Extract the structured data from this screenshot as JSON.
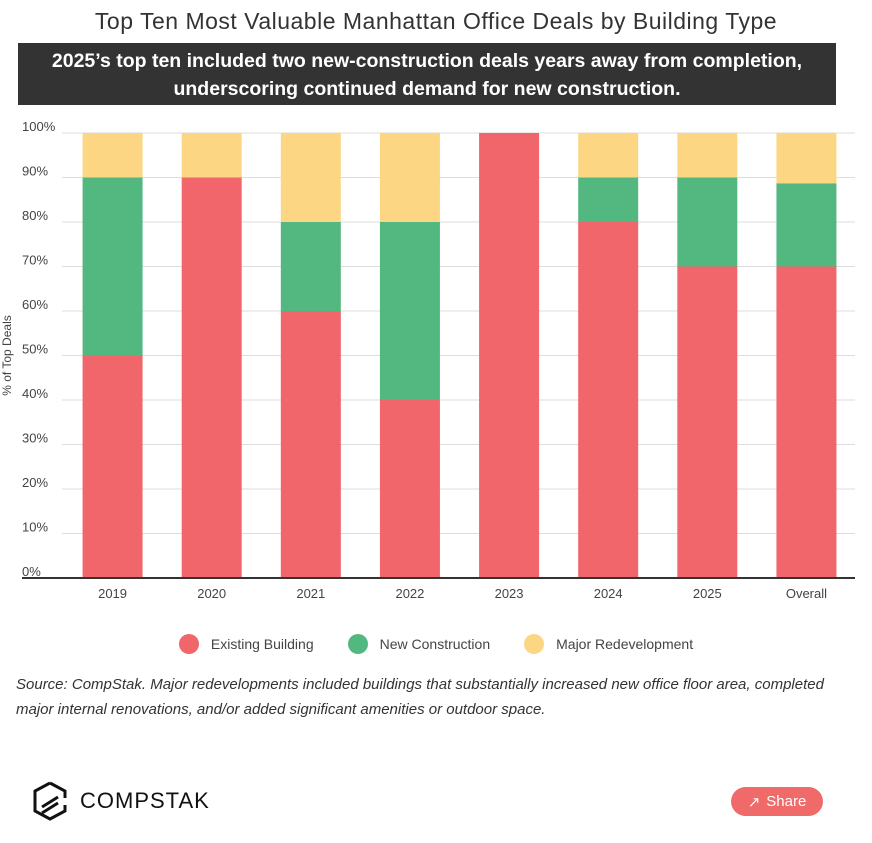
{
  "chart_data": {
    "type": "bar",
    "stacked": true,
    "title": "Top Ten Most Valuable Manhattan Office Deals by Building Type",
    "subtitle": "2025’s top ten included two new-construction deals years away from completion, underscoring continued demand for new construction.",
    "xlabel": "",
    "ylabel": "% of Top Deals",
    "ylim": [
      0,
      100
    ],
    "yticks": [
      "0%",
      "10%",
      "20%",
      "30%",
      "40%",
      "50%",
      "60%",
      "70%",
      "80%",
      "90%",
      "100%"
    ],
    "grid": true,
    "legend_position": "bottom",
    "categories": [
      "2019",
      "2020",
      "2021",
      "2022",
      "2023",
      "2024",
      "2025",
      "Overall"
    ],
    "series": [
      {
        "name": "Existing Building",
        "color": "#f0666a",
        "values": [
          50,
          90,
          60,
          40,
          100,
          80,
          70,
          70
        ]
      },
      {
        "name": "New Construction",
        "color": "#52b880",
        "values": [
          40,
          0,
          20,
          40,
          0,
          10,
          20,
          18.7
        ]
      },
      {
        "name": "Major Redevelopment",
        "color": "#fdd683",
        "values": [
          10,
          10,
          20,
          20,
          0,
          10,
          10,
          11.3
        ]
      }
    ]
  },
  "footer": {
    "source": "Source: CompStak. Major redevelopments included buildings that substantially increased new office floor area, completed major internal renovations, and/or added significant amenities or outdoor space.",
    "logo_text": "COMPSTAK",
    "share_label": "Share"
  }
}
